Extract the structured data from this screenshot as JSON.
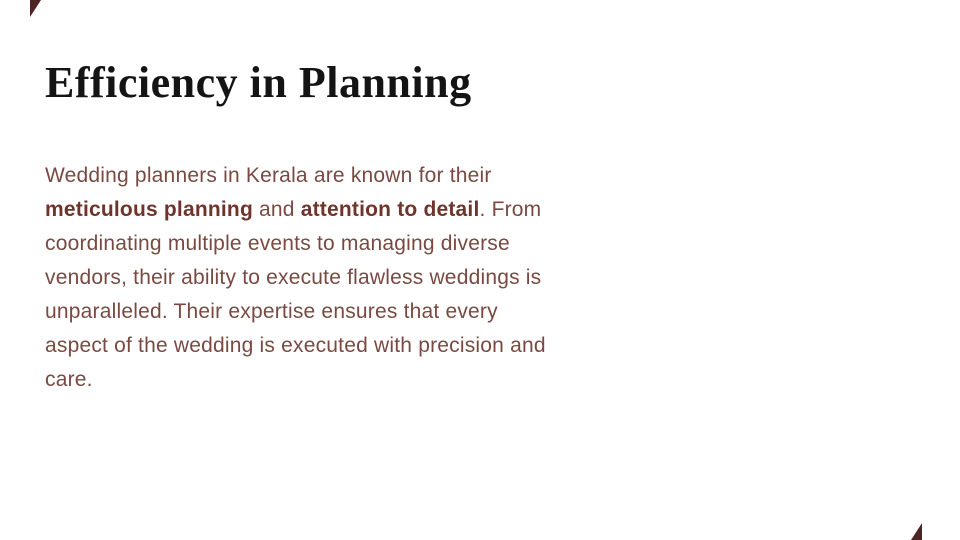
{
  "slide": {
    "title": "Efficiency in Planning",
    "paragraph": {
      "part1": "Wedding planners in Kerala are known for their ",
      "bold1": "meticulous planning",
      "part2": " and ",
      "bold2": "attention to detail",
      "part3": ". From coordinating multiple events to managing diverse vendors, their ability to execute flawless weddings is unparalleled. Their expertise ensures that every aspect of the wedding is executed with precision and care."
    },
    "colors": {
      "title_text": "#141414",
      "body_text": "#7a4a42",
      "bold_text": "#6e352d",
      "corner_accent": "#4e2424",
      "background": "#ffffff"
    }
  }
}
